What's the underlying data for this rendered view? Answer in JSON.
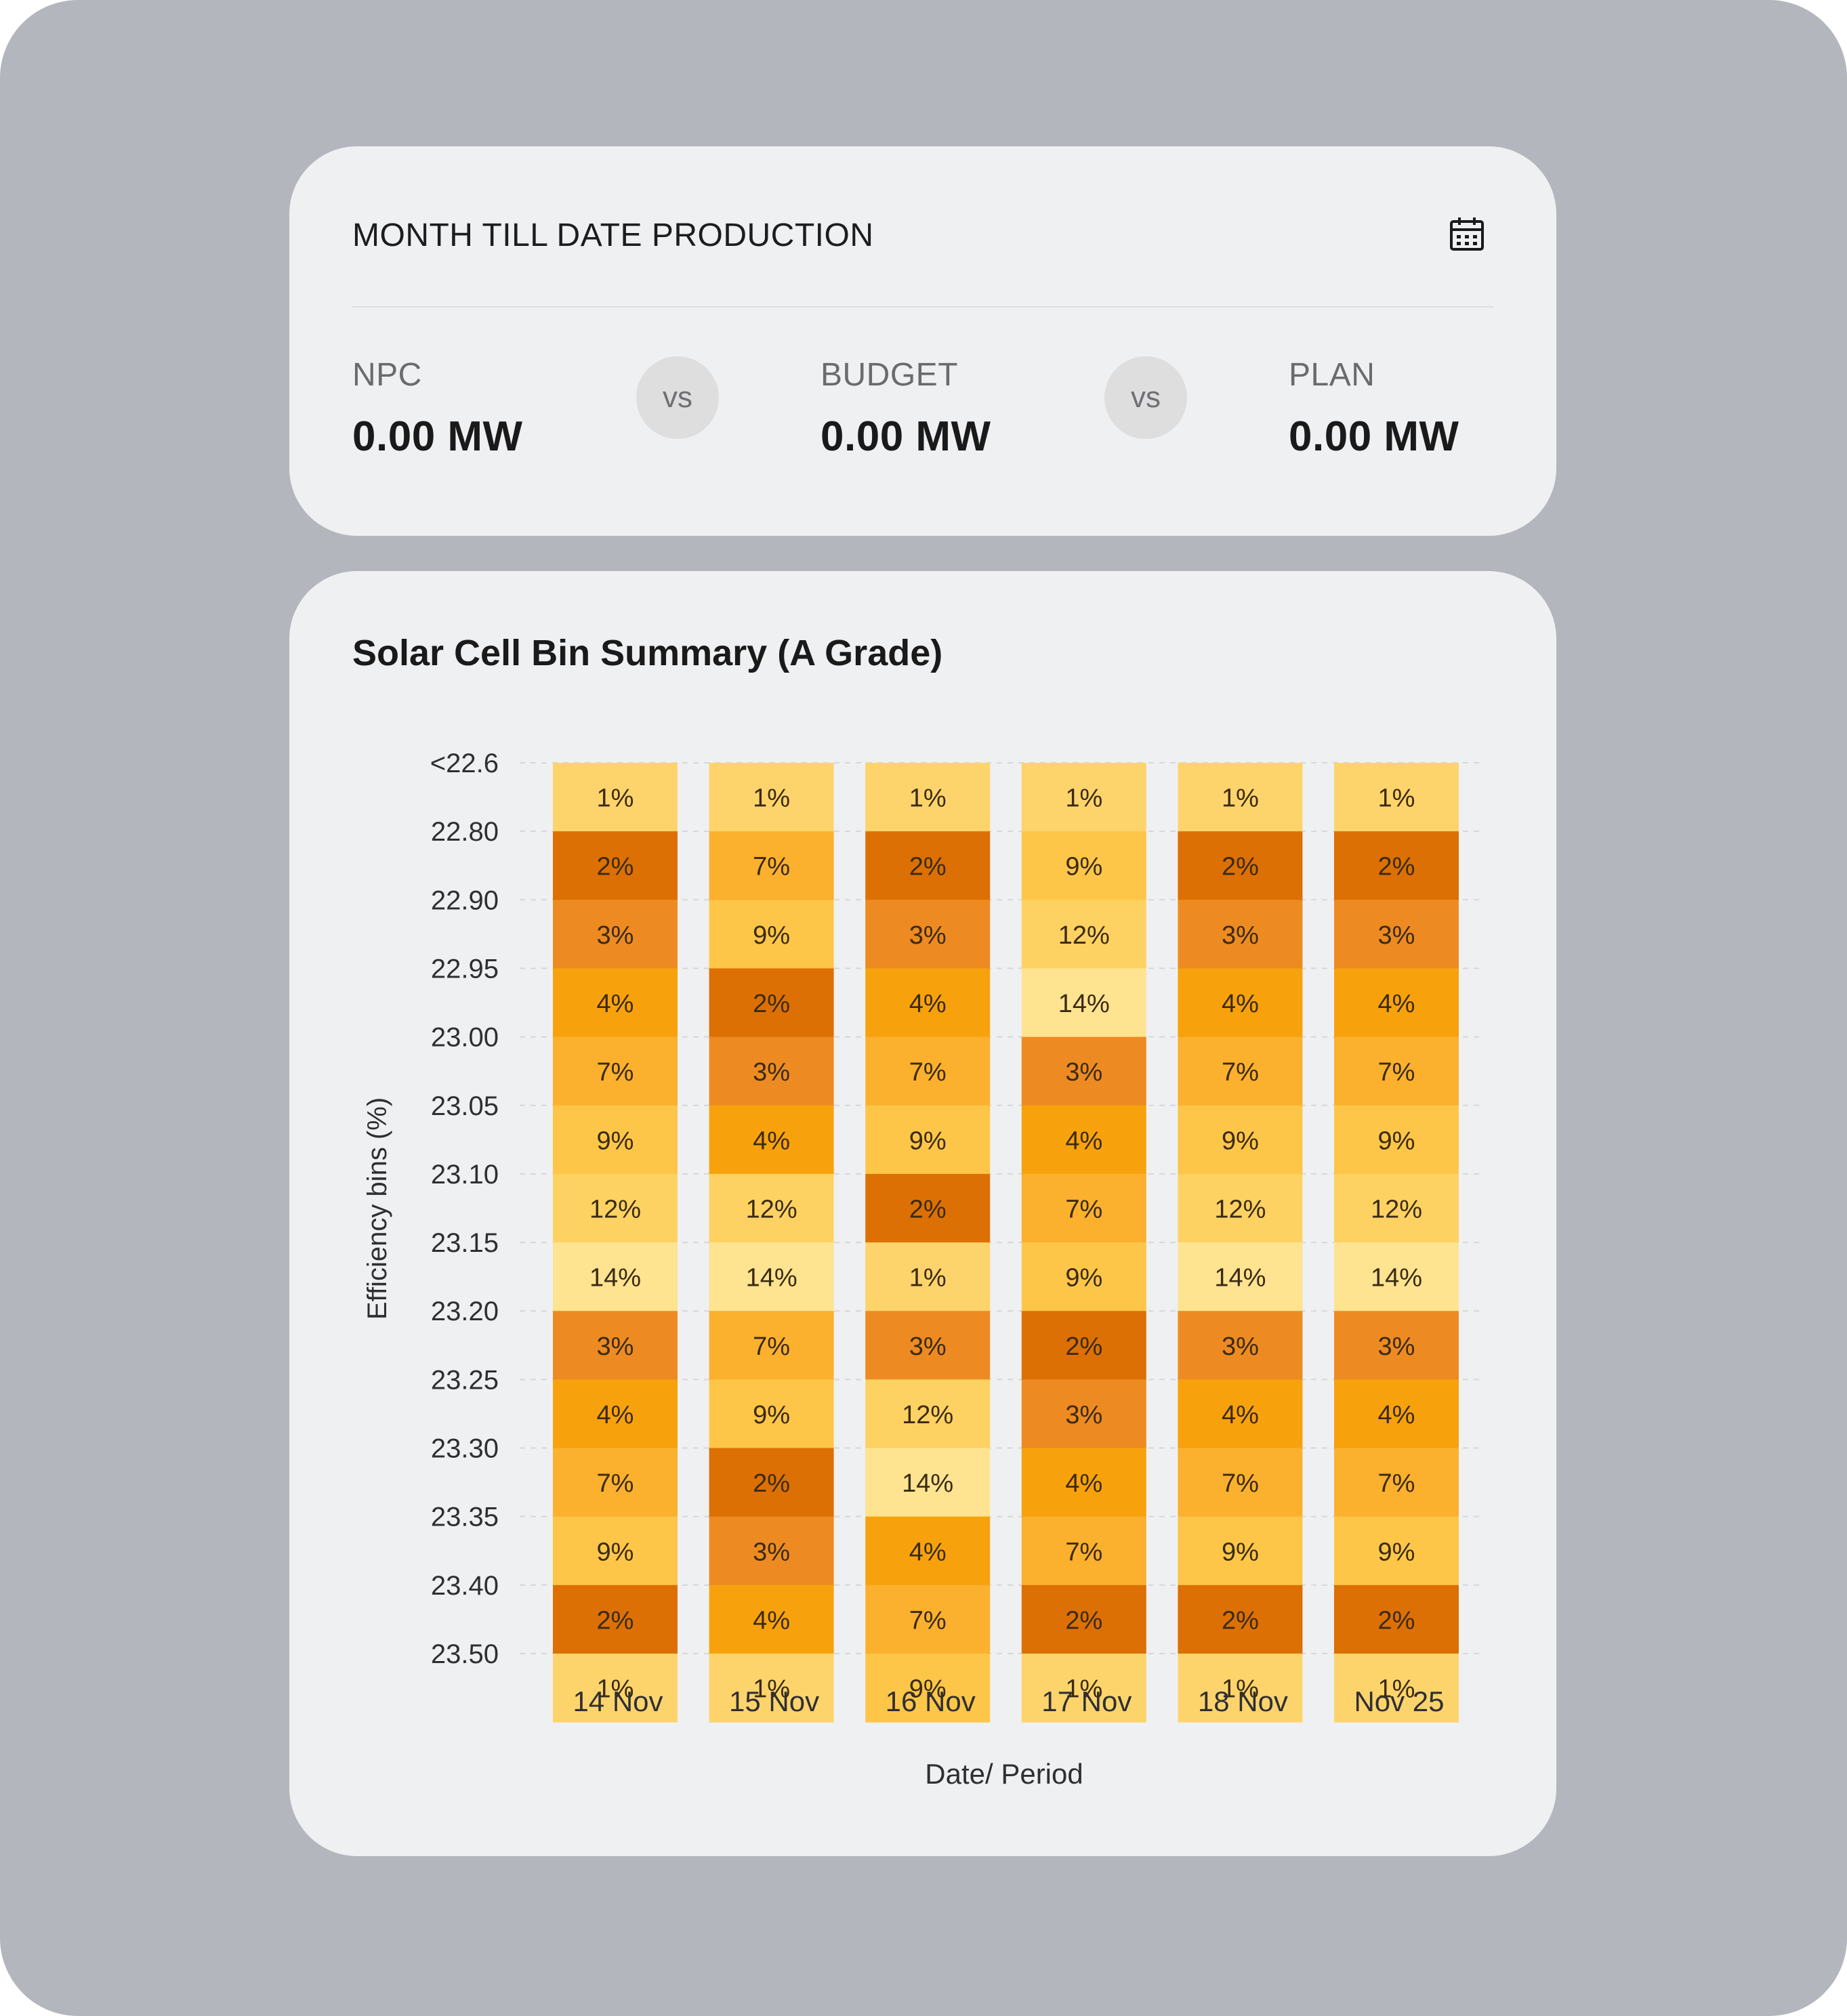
{
  "production": {
    "title": "MONTH TILL DATE PRODUCTION",
    "calendar_icon": "calendar-icon",
    "metrics": [
      {
        "label": "NPC",
        "value": "0.00 MW"
      },
      {
        "label": "BUDGET",
        "value": "0.00 MW"
      },
      {
        "label": "PLAN",
        "value": "0.00 MW"
      }
    ],
    "vs_label": "vs"
  },
  "chart_data": {
    "type": "heatmap",
    "title": "Solar Cell Bin Summary (A Grade)",
    "xlabel": "Date/ Period",
    "ylabel": "Efficiency bins (%)",
    "y_ticks": [
      "<22.6",
      "22.80",
      "22.90",
      "22.95",
      "23.00",
      "23.05",
      "23.10",
      "23.15",
      "23.20",
      "23.25",
      "23.30",
      "23.35",
      "23.40",
      "23.50"
    ],
    "categories": [
      "14 Nov",
      "15 Nov",
      "16 Nov",
      "17 Nov",
      "18 Nov",
      "Nov 25"
    ],
    "values": [
      [
        1,
        2,
        3,
        4,
        7,
        9,
        12,
        14,
        3,
        4,
        7,
        9,
        2,
        1
      ],
      [
        1,
        7,
        9,
        2,
        3,
        4,
        12,
        14,
        7,
        9,
        2,
        3,
        4,
        1
      ],
      [
        1,
        2,
        3,
        4,
        7,
        9,
        2,
        1,
        3,
        12,
        14,
        4,
        7,
        9
      ],
      [
        1,
        9,
        12,
        14,
        3,
        4,
        7,
        9,
        2,
        3,
        4,
        7,
        2,
        1
      ],
      [
        1,
        2,
        3,
        4,
        7,
        9,
        12,
        14,
        3,
        4,
        7,
        9,
        2,
        1
      ],
      [
        1,
        2,
        3,
        4,
        7,
        9,
        12,
        14,
        3,
        4,
        7,
        9,
        2,
        1
      ]
    ],
    "value_suffix": "%",
    "colors": {
      "1": "#fdd46c",
      "2": "#dc7004",
      "3": "#ed8b22",
      "4": "#f7a20d",
      "7": "#fbb02e",
      "9": "#fdc648",
      "12": "#fed262",
      "14": "#fee391"
    },
    "grid": "dashed horizontal"
  }
}
